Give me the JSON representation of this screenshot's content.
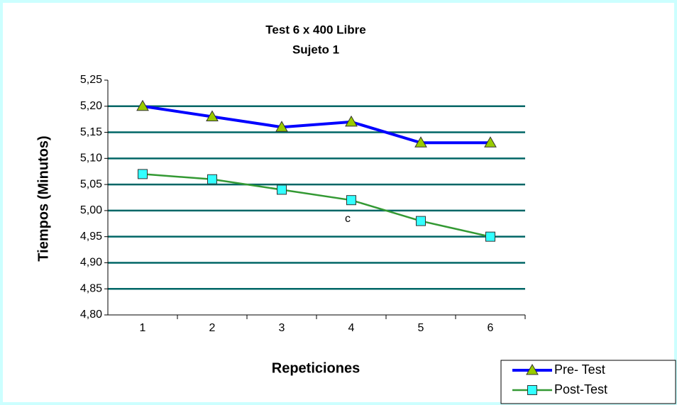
{
  "chart_data": {
    "type": "line",
    "title": "Test 6 x 400 Libre",
    "subtitle": "Sujeto 1",
    "y_label": "Tiempos (Minutos)",
    "x_label": "Repeticiones",
    "annotation": "c",
    "categories": [
      "1",
      "2",
      "3",
      "4",
      "5",
      "6"
    ],
    "series": [
      {
        "name": "Pre- Test",
        "color": "#0000ff",
        "marker_color": "#99cc00",
        "marker": "triangle",
        "values": [
          5.2,
          5.18,
          5.16,
          5.17,
          5.13,
          5.13
        ]
      },
      {
        "name": "Post-Test",
        "color": "#339933",
        "marker_color": "#33ffff",
        "marker": "square",
        "values": [
          5.07,
          5.06,
          5.04,
          5.02,
          4.98,
          4.95
        ]
      }
    ],
    "ylim": [
      4.8,
      5.25
    ],
    "yticks": [
      {
        "value": 4.8,
        "label": "4,80"
      },
      {
        "value": 4.85,
        "label": "4,85"
      },
      {
        "value": 4.9,
        "label": "4,90"
      },
      {
        "value": 4.95,
        "label": "4,95"
      },
      {
        "value": 5.0,
        "label": "5,00"
      },
      {
        "value": 5.05,
        "label": "5,05"
      },
      {
        "value": 5.1,
        "label": "5,10"
      },
      {
        "value": 5.15,
        "label": "5,15"
      },
      {
        "value": 5.2,
        "label": "5,20"
      },
      {
        "value": 5.25,
        "label": "5,25"
      }
    ],
    "grid": true,
    "grid_color": "#006666",
    "legend": "bottom-right"
  }
}
